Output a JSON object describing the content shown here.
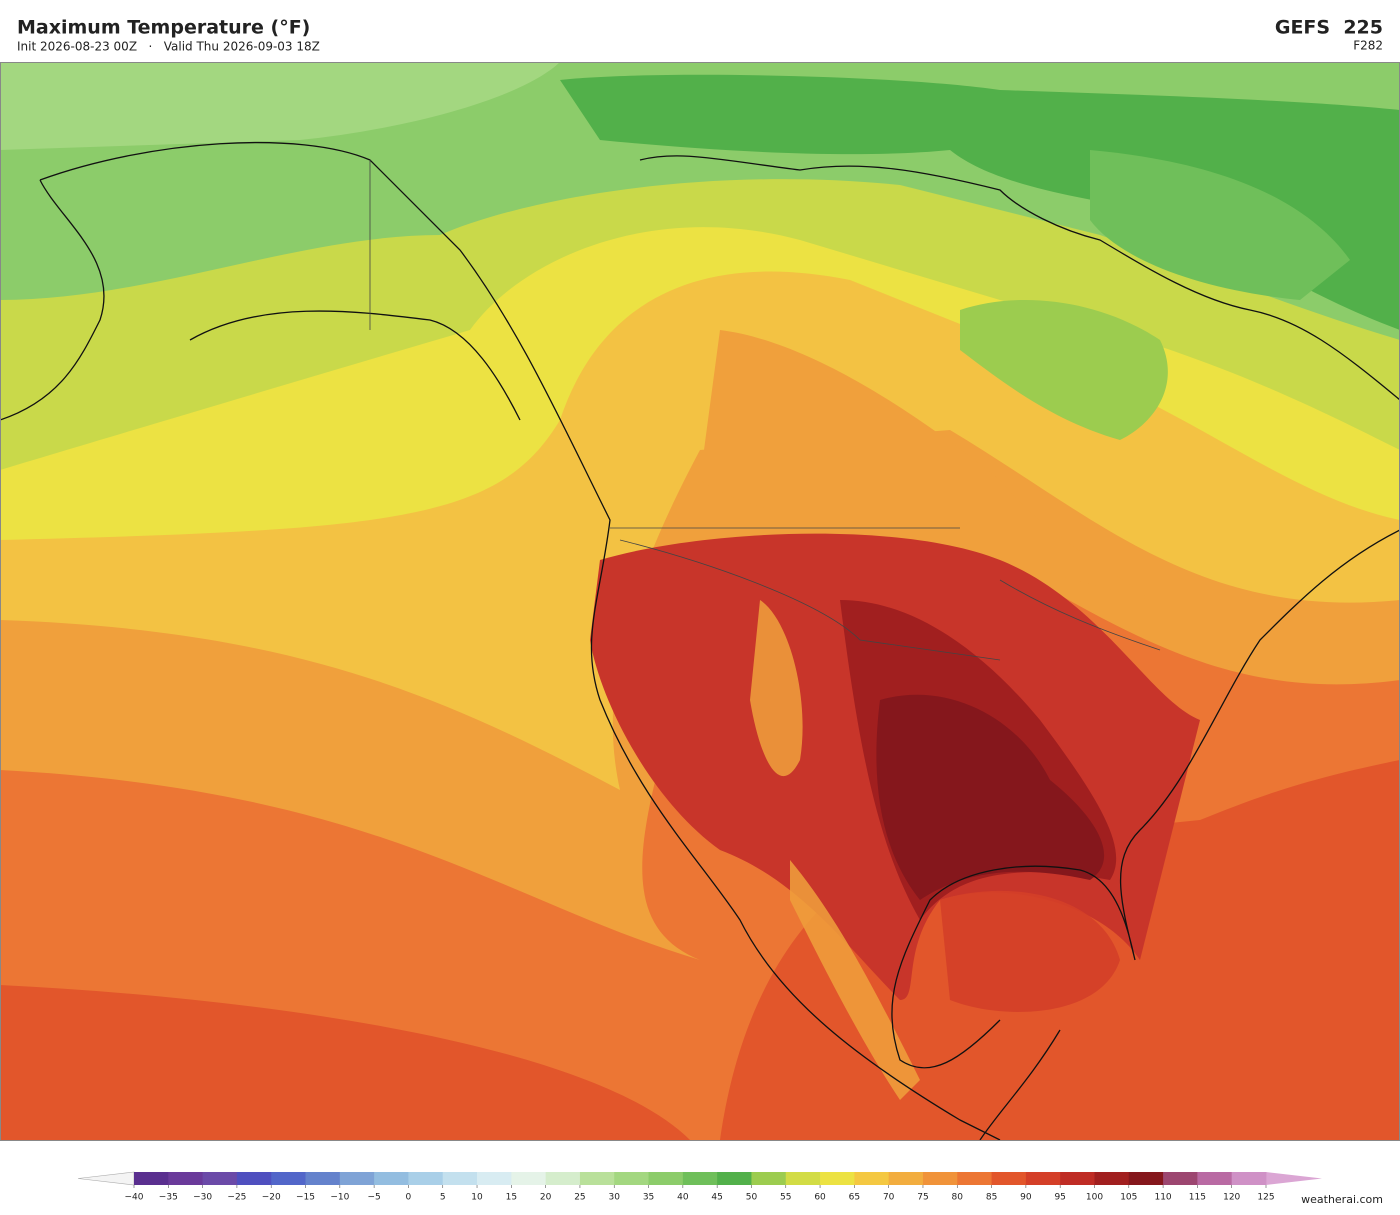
{
  "header": {
    "title": "Maximum Temperature  (°F)",
    "subtitle": "Init 2026-08-23 00Z   ·   Valid Thu 2026-09-03 18Z",
    "model": "GEFS  225",
    "forecast_hour": "F282"
  },
  "colorbar": {
    "ticks": [
      {
        "value": -40,
        "label": "−40"
      },
      {
        "value": -35,
        "label": "−35"
      },
      {
        "value": -30,
        "label": "−30"
      },
      {
        "value": -25,
        "label": "−25"
      },
      {
        "value": -20,
        "label": "−20"
      },
      {
        "value": -15,
        "label": "−15"
      },
      {
        "value": -10,
        "label": "−10"
      },
      {
        "value": -5,
        "label": "−5"
      },
      0,
      5,
      10,
      15,
      20,
      25,
      30,
      35,
      40,
      45,
      50,
      55,
      60,
      65,
      70,
      75,
      80,
      85,
      90,
      95,
      100,
      105,
      110,
      115,
      120,
      125
    ],
    "colors": [
      "#5a2f8f",
      "#6a3a9a",
      "#6b4aa8",
      "#4f4fbf",
      "#5266c9",
      "#6482cc",
      "#7fa3d6",
      "#93bde0",
      "#a9cfe8",
      "#c3e0ee",
      "#d8ecf2",
      "#e5f3e8",
      "#d5edcc",
      "#b9e09a",
      "#a3d780",
      "#8ccc6a",
      "#6fbf5a",
      "#52b04a",
      "#9ccc4f",
      "#d2dc45",
      "#ece243",
      "#f4c842",
      "#f2ad3f",
      "#f0933a",
      "#ec7634",
      "#e2562b",
      "#d43f28",
      "#bf2c25",
      "#a11f1f",
      "#85171c",
      "#9c4670",
      "#b96aa3",
      "#cf91c6"
    ],
    "under_color": "#f4f4f4",
    "over_color": "#dba6d4"
  },
  "watermark": "weatherai.com"
}
